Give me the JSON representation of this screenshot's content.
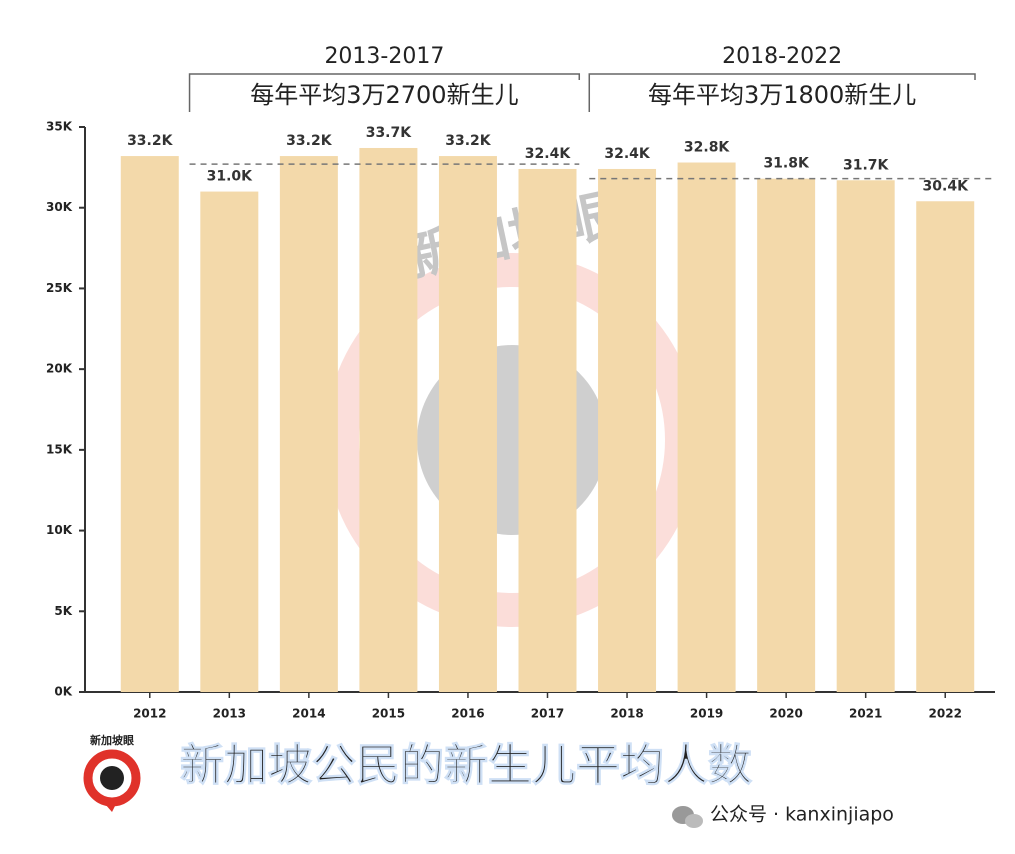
{
  "chart_data": {
    "type": "bar",
    "title": "新加坡公民的新生儿平均人数",
    "categories": [
      "2012",
      "2013",
      "2014",
      "2015",
      "2016",
      "2017",
      "2018",
      "2019",
      "2020",
      "2021",
      "2022"
    ],
    "values": [
      33200,
      31000,
      33200,
      33700,
      33200,
      32400,
      32400,
      32800,
      31800,
      31700,
      30400
    ],
    "value_labels": [
      "33.2K",
      "31.0K",
      "33.2K",
      "33.7K",
      "33.2K",
      "32.4K",
      "32.4K",
      "32.8K",
      "31.8K",
      "31.7K",
      "30.4K"
    ],
    "color": "#f3d9aa",
    "ylim": [
      0,
      35000
    ],
    "yticks": [
      {
        "value": 0,
        "label": "0K"
      },
      {
        "value": 5000,
        "label": "5K"
      },
      {
        "value": 10000,
        "label": "10K"
      },
      {
        "value": 15000,
        "label": "15K"
      },
      {
        "value": 20000,
        "label": "20K"
      },
      {
        "value": 25000,
        "label": "25K"
      },
      {
        "value": 30000,
        "label": "30K"
      },
      {
        "value": 35000,
        "label": "35K"
      }
    ],
    "annotations": [
      {
        "period": "2013-2017",
        "text": "每年平均3万2700新生儿",
        "average": 32700
      },
      {
        "period": "2018-2022",
        "text": "每年平均3万1800新生儿",
        "average": 31800
      }
    ],
    "watermark": "新加坡眼",
    "footer": "公众号 · kanxinjiapo"
  }
}
